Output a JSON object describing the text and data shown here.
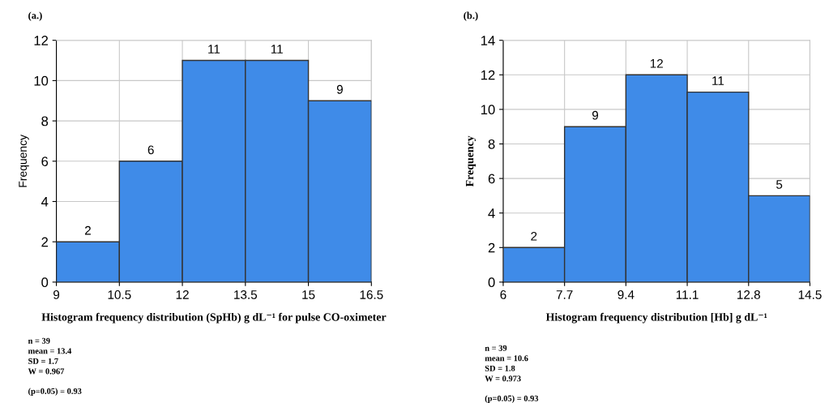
{
  "chart_data": [
    {
      "type": "histogram",
      "title": "(a.)",
      "xlabel": "Histogram frequency distribution (SpHb) g dL⁻¹ for pulse CO-oximeter",
      "ylabel": "Frequency",
      "bins": [
        9,
        10.5,
        12,
        13.5,
        15,
        16.5
      ],
      "values": [
        2,
        6,
        11,
        11,
        9
      ],
      "color": "#3f8be8",
      "xlim": [
        9,
        16.5
      ],
      "xticks": [
        9,
        10.5,
        12,
        13.5,
        15,
        16.5
      ],
      "ylim": [
        0,
        12
      ],
      "yticks": [
        0,
        2,
        4,
        6,
        8,
        10,
        12
      ],
      "grid": true,
      "data_labels": true,
      "annotations": [
        "n = 39",
        "mean = 13.4",
        "SD = 1.7",
        "W = 0.967",
        "(p=0.05) = 0.93"
      ]
    },
    {
      "type": "histogram",
      "title": "(b.)",
      "xlabel": "Histogram frequency distribution [Hb] g dL⁻¹",
      "ylabel": "Frequency",
      "bins": [
        6,
        7.7,
        9.4,
        11.1,
        12.8,
        14.5
      ],
      "values": [
        2,
        9,
        12,
        11,
        5
      ],
      "color": "#3f8be8",
      "xlim": [
        6,
        14.5
      ],
      "xticks": [
        6,
        7.7,
        9.4,
        11.1,
        12.8,
        14.5
      ],
      "ylim": [
        0,
        14
      ],
      "yticks": [
        0,
        2,
        4,
        6,
        8,
        10,
        12,
        14
      ],
      "grid": true,
      "data_labels": true,
      "annotations": [
        "n = 39",
        "mean = 10.6",
        "SD = 1.8",
        "W = 0.973",
        "(p=0.05) = 0.93"
      ]
    }
  ]
}
